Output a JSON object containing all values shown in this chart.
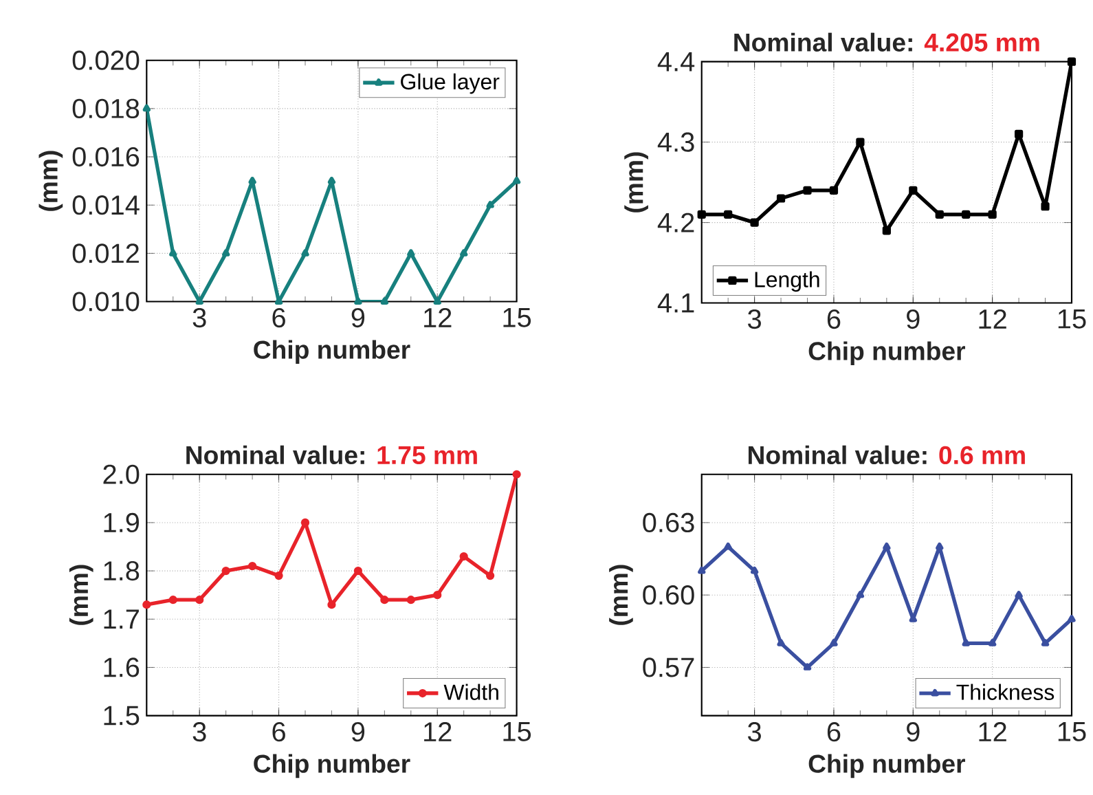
{
  "chart_data": [
    {
      "type": "line",
      "xlabel": "Chip number",
      "ylabel": "(mm)",
      "x": [
        1,
        2,
        3,
        4,
        5,
        6,
        7,
        8,
        9,
        10,
        11,
        12,
        13,
        14,
        15
      ],
      "xlim": [
        1,
        15
      ],
      "xticks": [
        3,
        6,
        9,
        12,
        15
      ],
      "ylim": [
        0.01,
        0.02
      ],
      "yticks": [
        {
          "value": 0.01,
          "label": "0.010"
        },
        {
          "value": 0.012,
          "label": "0.012"
        },
        {
          "value": 0.014,
          "label": "0.014"
        },
        {
          "value": 0.016,
          "label": "0.016"
        },
        {
          "value": 0.018,
          "label": "0.018"
        },
        {
          "value": 0.02,
          "label": "0.020"
        }
      ],
      "grid": true,
      "legend": "top right",
      "marker": "triangle",
      "series": [
        {
          "name": "Glue layer",
          "color": "#17807e",
          "values": [
            0.018,
            0.012,
            0.01,
            0.012,
            0.015,
            0.01,
            0.012,
            0.015,
            0.01,
            0.01,
            0.012,
            0.01,
            0.012,
            0.014,
            0.015
          ]
        }
      ]
    },
    {
      "type": "line",
      "title": "Nominal value:",
      "subtitle": "4.205 mm",
      "xlabel": "Chip number",
      "ylabel": "(mm)",
      "x": [
        1,
        2,
        3,
        4,
        5,
        6,
        7,
        8,
        9,
        10,
        11,
        12,
        13,
        14,
        15
      ],
      "xlim": [
        1,
        15
      ],
      "xticks": [
        3,
        6,
        9,
        12,
        15
      ],
      "ylim": [
        4.1,
        4.4
      ],
      "yticks": [
        4.1,
        4.2,
        4.3,
        4.4
      ],
      "grid": true,
      "legend": "bottom left",
      "marker": "square",
      "series": [
        {
          "name": "Length",
          "color": "#000000",
          "values": [
            4.21,
            4.21,
            4.2,
            4.23,
            4.24,
            4.24,
            4.3,
            4.19,
            4.24,
            4.21,
            4.21,
            4.21,
            4.31,
            4.22,
            4.4
          ]
        }
      ]
    },
    {
      "type": "line",
      "title": "Nominal value:",
      "subtitle": "1.75 mm",
      "xlabel": "Chip number",
      "ylabel": "(mm)",
      "x": [
        1,
        2,
        3,
        4,
        5,
        6,
        7,
        8,
        9,
        10,
        11,
        12,
        13,
        14,
        15
      ],
      "xlim": [
        1,
        15
      ],
      "xticks": [
        3,
        6,
        9,
        12,
        15
      ],
      "ylim": [
        1.5,
        2.0
      ],
      "yticks": [
        1.5,
        1.6,
        1.7,
        1.8,
        1.9,
        {
          "value": 2.0,
          "label": "2.0"
        }
      ],
      "grid": true,
      "legend": "bottom right",
      "marker": "circle",
      "series": [
        {
          "name": "Width",
          "color": "#e8232a",
          "values": [
            1.73,
            1.74,
            1.74,
            1.8,
            1.81,
            1.79,
            1.9,
            1.73,
            1.8,
            1.74,
            1.74,
            1.75,
            1.83,
            1.79,
            2.0
          ]
        }
      ]
    },
    {
      "type": "line",
      "title": "Nominal value:",
      "subtitle": "0.6 mm",
      "xlabel": "Chip number",
      "ylabel": "(mm)",
      "x": [
        1,
        2,
        3,
        4,
        5,
        6,
        7,
        8,
        9,
        10,
        11,
        12,
        13,
        14,
        15
      ],
      "xlim": [
        1,
        15
      ],
      "xticks": [
        3,
        6,
        9,
        12,
        15
      ],
      "ylim": [
        0.55,
        0.65
      ],
      "yticks": [
        0.57,
        {
          "value": 0.6,
          "label": "0.60"
        },
        0.63
      ],
      "grid": true,
      "legend": "bottom right",
      "marker": "triangle",
      "series": [
        {
          "name": "Thickness",
          "color": "#3a4fa0",
          "values": [
            0.61,
            0.62,
            0.61,
            0.58,
            0.57,
            0.58,
            0.6,
            0.62,
            0.59,
            0.62,
            0.58,
            0.58,
            0.6,
            0.58,
            0.59
          ]
        }
      ]
    }
  ]
}
